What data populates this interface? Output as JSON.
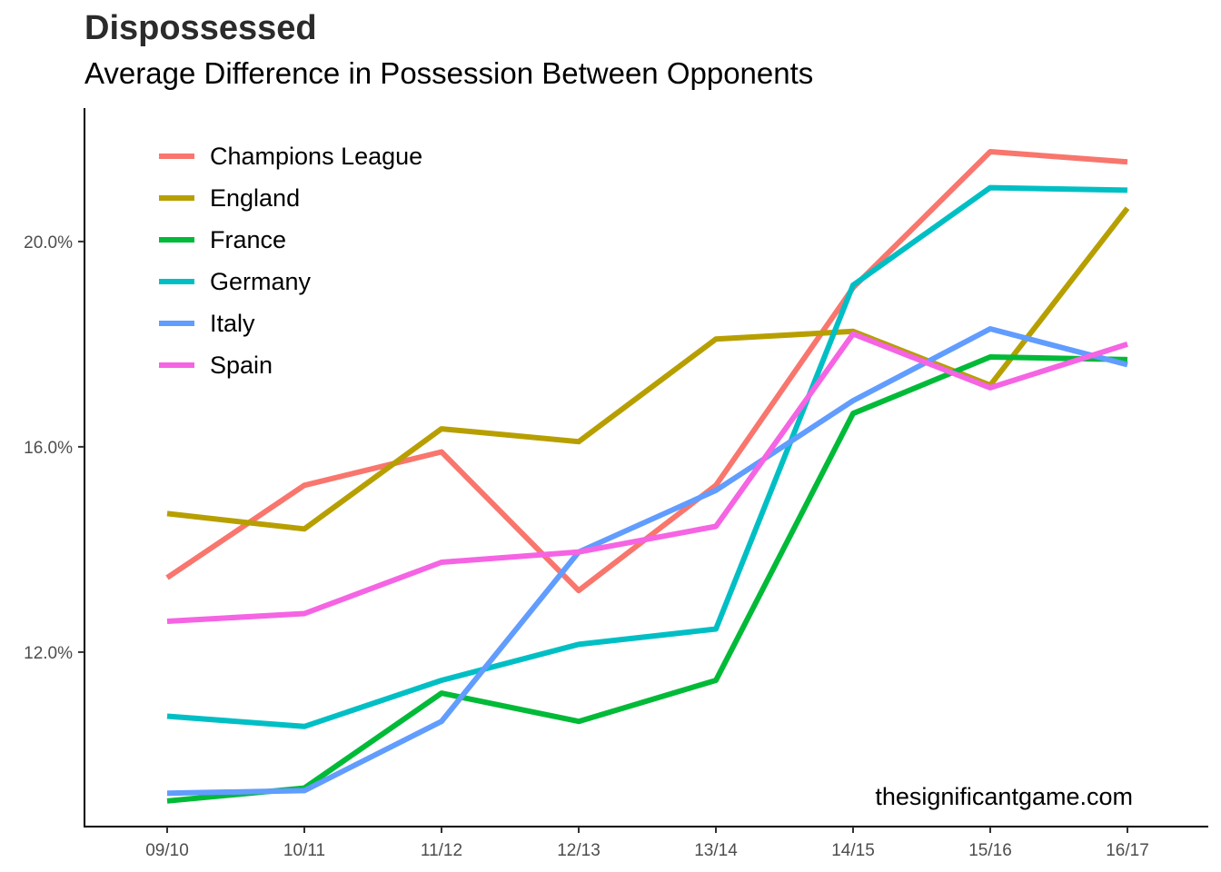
{
  "chart_data": {
    "type": "line",
    "title": "Dispossessed",
    "subtitle": "Average Difference in Possession Between Opponents",
    "xlabel": "",
    "ylabel": "",
    "categories": [
      "09/10",
      "10/11",
      "11/12",
      "12/13",
      "13/14",
      "14/15",
      "15/16",
      "16/17"
    ],
    "y_ticks": [
      12.0,
      16.0,
      20.0
    ],
    "y_tick_labels": [
      "12.0%",
      "16.0%",
      "20.0%"
    ],
    "ylim": [
      8.6,
      22.6
    ],
    "grid": false,
    "legend_position": "top-left",
    "series": [
      {
        "name": "Champions League",
        "color": "#F8766D",
        "values": [
          13.45,
          15.25,
          15.9,
          13.2,
          15.25,
          19.1,
          21.75,
          21.55
        ]
      },
      {
        "name": "England",
        "color": "#B79F00",
        "values": [
          14.7,
          14.4,
          16.35,
          16.1,
          18.1,
          18.25,
          17.2,
          20.65
        ]
      },
      {
        "name": "France",
        "color": "#00BA38",
        "values": [
          9.1,
          9.35,
          11.2,
          10.65,
          11.45,
          16.65,
          17.75,
          17.7
        ]
      },
      {
        "name": "Germany",
        "color": "#00BFC4",
        "values": [
          10.75,
          10.55,
          11.45,
          12.15,
          12.45,
          19.15,
          21.05,
          21.0
        ]
      },
      {
        "name": "Italy",
        "color": "#619CFF",
        "values": [
          9.25,
          9.3,
          10.65,
          13.95,
          15.15,
          16.9,
          18.3,
          17.6
        ]
      },
      {
        "name": "Spain",
        "color": "#F564E3",
        "values": [
          12.6,
          12.75,
          13.75,
          13.95,
          14.45,
          18.2,
          17.15,
          18.0
        ]
      }
    ],
    "annotation": "thesignificantgame.com"
  }
}
